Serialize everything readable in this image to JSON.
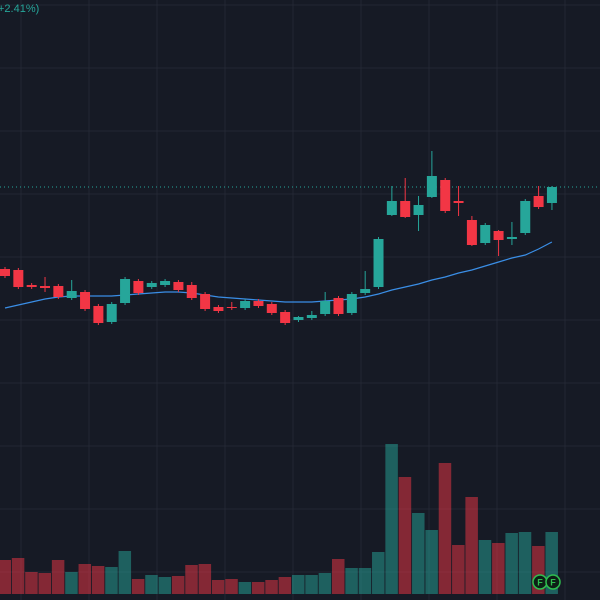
{
  "chart_data": {
    "type": "candlestick",
    "title": "+2.41%)",
    "ylim": [
      0,
      600
    ],
    "up_color": "#26a69a",
    "down_color": "#f23645",
    "ma_color": "#3a8ee6",
    "open": [
      331,
      330,
      315,
      314,
      314,
      302,
      308,
      294,
      278,
      297,
      319,
      313,
      315,
      318,
      315,
      306,
      293,
      293,
      292,
      299,
      296,
      288,
      280,
      282,
      286,
      302,
      287,
      307,
      313,
      385,
      399,
      385,
      403,
      420,
      399,
      380,
      357,
      369,
      361,
      367,
      404,
      397
    ],
    "high": [
      333,
      332,
      317,
      323,
      316,
      320,
      310,
      296,
      298,
      323,
      321,
      319,
      321,
      320,
      318,
      308,
      295,
      298,
      301,
      301,
      298,
      290,
      284,
      289,
      308,
      304,
      308,
      329,
      363,
      414,
      422,
      404,
      449,
      422,
      414,
      384,
      377,
      370,
      378,
      401,
      414,
      414
    ],
    "low": [
      322,
      311,
      311,
      308,
      301,
      300,
      289,
      275,
      276,
      295,
      305,
      311,
      313,
      308,
      300,
      289,
      287,
      290,
      290,
      292,
      285,
      275,
      278,
      280,
      284,
      284,
      285,
      305,
      311,
      384,
      382,
      369,
      402,
      387,
      384,
      354,
      355,
      344,
      355,
      365,
      391,
      390
    ],
    "close": [
      324,
      313,
      313,
      312,
      303,
      309,
      291,
      277,
      296,
      321,
      307,
      317,
      319,
      310,
      302,
      291,
      289,
      292,
      299,
      294,
      287,
      277,
      283,
      285,
      299,
      286,
      306,
      311,
      361,
      399,
      383,
      395,
      424,
      389,
      397,
      355,
      375,
      360,
      363,
      399,
      393,
      413
    ],
    "volume": [
      34,
      36,
      22,
      21,
      34,
      22,
      30,
      28,
      27,
      43,
      15,
      19,
      17,
      18,
      29,
      30,
      14,
      15,
      12,
      12,
      14,
      17,
      19,
      19,
      21,
      35,
      26,
      26,
      42,
      150,
      117,
      81,
      64,
      131,
      49,
      97,
      54,
      51,
      61,
      62,
      48,
      62
    ],
    "volume_ylim": [
      0,
      200
    ],
    "ma": [
      292,
      295,
      298,
      301,
      303,
      304,
      304,
      304,
      304,
      305,
      306,
      307,
      308,
      308,
      307,
      305,
      303,
      302,
      301,
      300,
      299,
      298,
      298,
      298,
      299,
      300,
      301,
      303,
      306,
      310,
      313,
      316,
      320,
      323,
      327,
      330,
      334,
      338,
      342,
      345,
      351,
      358
    ],
    "markers": [
      "F",
      "F"
    ]
  }
}
